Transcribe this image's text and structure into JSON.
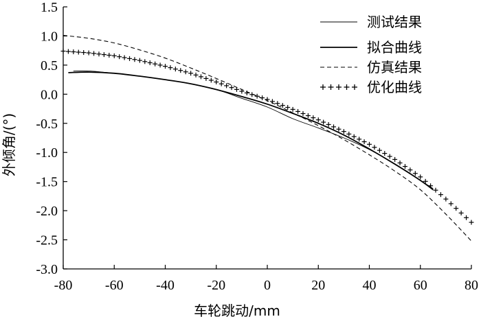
{
  "chart_data": {
    "type": "line",
    "title": "",
    "xlabel": "车轮跳动/mm",
    "ylabel": "外倾角/(°)",
    "xlim": [
      -80,
      80
    ],
    "ylim": [
      -3.0,
      1.5
    ],
    "xticks": [
      -80,
      -60,
      -40,
      -20,
      0,
      20,
      40,
      60,
      80
    ],
    "yticks": [
      1.5,
      1.0,
      0.5,
      0.0,
      -0.5,
      -1.0,
      -1.5,
      -2.0,
      -2.5,
      -3.0
    ],
    "xtick_labels": [
      "-80",
      "-60",
      "-40",
      "-20",
      "0",
      "20",
      "40",
      "60",
      "80"
    ],
    "ytick_labels": [
      "1.5",
      "1.0",
      "0.5",
      "0.0",
      "-0.5",
      "-1.0",
      "-1.5",
      "-2.0",
      "-2.5",
      "-3.0"
    ],
    "grid": false,
    "legend_position": "top-right",
    "series": [
      {
        "name": "测试结果",
        "style": "thin",
        "x": [
          -76,
          -70,
          -60,
          -50,
          -40,
          -30,
          -20,
          -10,
          0,
          10,
          20,
          30,
          40,
          50,
          60,
          65
        ],
        "y": [
          0.4,
          0.4,
          0.36,
          0.31,
          0.25,
          0.18,
          0.08,
          -0.07,
          -0.22,
          -0.42,
          -0.58,
          -0.75,
          -0.95,
          -1.2,
          -1.48,
          -1.62
        ]
      },
      {
        "name": "拟合曲线",
        "style": "thick",
        "x": [
          -78,
          -70,
          -60,
          -50,
          -40,
          -30,
          -20,
          -10,
          0,
          10,
          20,
          30,
          40,
          50,
          60,
          65
        ],
        "y": [
          0.37,
          0.38,
          0.36,
          0.31,
          0.25,
          0.18,
          0.08,
          -0.04,
          -0.17,
          -0.33,
          -0.5,
          -0.7,
          -0.94,
          -1.2,
          -1.48,
          -1.64
        ]
      },
      {
        "name": "仿真结果",
        "style": "dashed",
        "x": [
          -80,
          -70,
          -60,
          -50,
          -40,
          -30,
          -20,
          -10,
          0,
          10,
          20,
          30,
          40,
          50,
          60,
          70,
          80
        ],
        "y": [
          1.01,
          0.96,
          0.88,
          0.76,
          0.62,
          0.45,
          0.27,
          0.08,
          -0.11,
          -0.32,
          -0.54,
          -0.78,
          -1.04,
          -1.32,
          -1.64,
          -2.06,
          -2.52
        ]
      },
      {
        "name": "优化曲线",
        "style": "plus",
        "x": [
          -80,
          -70,
          -60,
          -50,
          -40,
          -30,
          -20,
          -10,
          0,
          10,
          20,
          30,
          40,
          50,
          60,
          70,
          80
        ],
        "y": [
          0.74,
          0.71,
          0.66,
          0.58,
          0.48,
          0.36,
          0.21,
          0.05,
          -0.09,
          -0.26,
          -0.44,
          -0.64,
          -0.86,
          -1.12,
          -1.42,
          -1.8,
          -2.2
        ]
      }
    ]
  }
}
